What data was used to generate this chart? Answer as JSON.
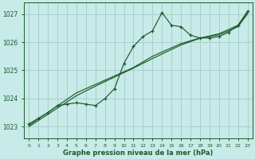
{
  "title": "Graphe pression niveau de la mer (hPa)",
  "background_color": "#c8eae8",
  "grid_color": "#aacfcc",
  "line_color": "#1a5c2a",
  "xlim": [
    -0.5,
    23.5
  ],
  "ylim": [
    1022.6,
    1027.4
  ],
  "yticks": [
    1023,
    1024,
    1025,
    1026,
    1027
  ],
  "xticks": [
    0,
    1,
    2,
    3,
    4,
    5,
    6,
    7,
    8,
    9,
    10,
    11,
    12,
    13,
    14,
    15,
    16,
    17,
    18,
    19,
    20,
    21,
    22,
    23
  ],
  "hours": [
    0,
    1,
    2,
    3,
    4,
    5,
    6,
    7,
    8,
    9,
    10,
    11,
    12,
    13,
    14,
    15,
    16,
    17,
    18,
    19,
    20,
    21,
    22,
    23
  ],
  "pressure_main": [
    1023.1,
    1023.3,
    1023.5,
    1023.75,
    1023.8,
    1023.85,
    1023.8,
    1023.75,
    1024.0,
    1024.35,
    1025.25,
    1025.85,
    1026.2,
    1026.4,
    1027.05,
    1026.6,
    1026.55,
    1026.25,
    1026.15,
    1026.15,
    1026.2,
    1026.35,
    1026.6,
    1027.1
  ],
  "pressure_smooth1": [
    1023.05,
    1023.28,
    1023.51,
    1023.74,
    1023.97,
    1024.2,
    1024.35,
    1024.5,
    1024.65,
    1024.8,
    1024.95,
    1025.1,
    1025.3,
    1025.5,
    1025.65,
    1025.8,
    1025.95,
    1026.05,
    1026.15,
    1026.22,
    1026.3,
    1026.45,
    1026.6,
    1027.05
  ],
  "pressure_smooth2": [
    1023.0,
    1023.22,
    1023.44,
    1023.66,
    1023.88,
    1024.1,
    1024.27,
    1024.44,
    1024.6,
    1024.76,
    1024.92,
    1025.08,
    1025.25,
    1025.42,
    1025.58,
    1025.74,
    1025.9,
    1026.02,
    1026.14,
    1026.2,
    1026.26,
    1026.4,
    1026.55,
    1027.0
  ],
  "ytick_fontsize": 5.5,
  "xtick_fontsize": 4.5,
  "xlabel_fontsize": 6.0
}
